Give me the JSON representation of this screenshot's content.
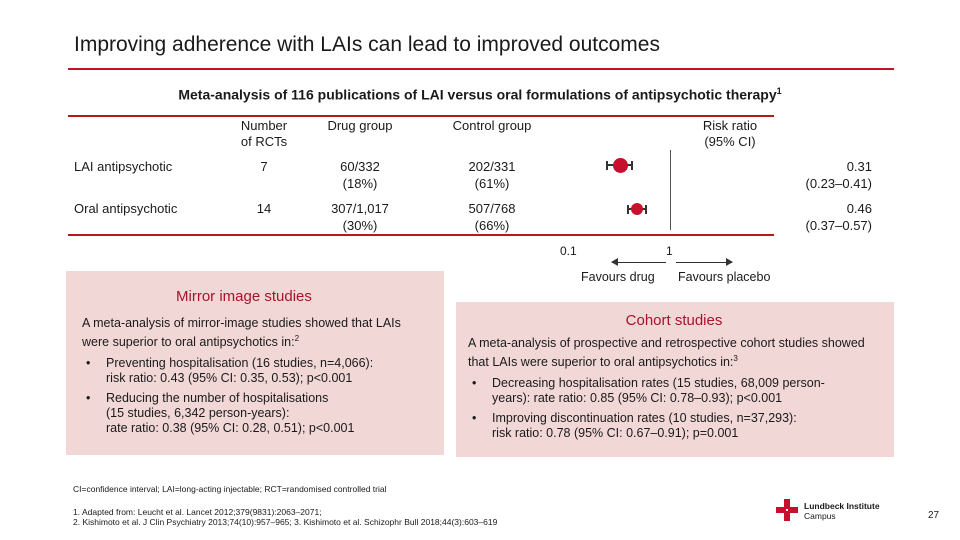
{
  "slide": {
    "title": "Improving adherence with LAIs can lead to improved outcomes",
    "subtitle": "Meta-analysis of 116 publications of LAI versus oral formulations of antipsychotic therapy",
    "subtitle_ref": "1",
    "page_number": "27"
  },
  "table": {
    "headers": {
      "rcts_line1": "Number",
      "rcts_line2": "of RCTs",
      "drug": "Drug group",
      "control": "Control group",
      "rr_line1": "Risk ratio",
      "rr_line2": "(95% CI)"
    },
    "rows": [
      {
        "label": "LAI antipsychotic",
        "rcts": "7",
        "drug_line1": "60/332",
        "drug_line2": "(18%)",
        "control_line1": "202/331",
        "control_line2": "(61%)",
        "rr_line1": "0.31",
        "rr_line2": "(0.23–0.41)",
        "rr": 0.31,
        "ci_low": 0.23,
        "ci_high": 0.41
      },
      {
        "label": "Oral antipsychotic",
        "rcts": "14",
        "drug_line1": "307/1,017",
        "drug_line2": "(30%)",
        "control_line1": "507/768",
        "control_line2": "(66%)",
        "rr_line1": "0.46",
        "rr_line2": "(0.37–0.57)",
        "rr": 0.46,
        "ci_low": 0.37,
        "ci_high": 0.57
      }
    ],
    "axis": {
      "tick_low": "0.1",
      "tick_high": "1",
      "favours_drug": "Favours drug",
      "favours_placebo": "Favours placebo"
    },
    "marker_color": "#c8102e"
  },
  "mirror": {
    "title": "Mirror image studies",
    "intro": "A meta-analysis of mirror-image studies showed that LAIs were superior to oral antipsychotics in:",
    "intro_ref": "2",
    "bullet1_line1": "Preventing hospitalisation (16 studies, n=4,066):",
    "bullet1_line2": "risk ratio: 0.43 (95% CI: 0.35, 0.53); p<0.001",
    "bullet2_line1": "Reducing the number of hospitalisations",
    "bullet2_line2": "(15 studies, 6,342 person-years):",
    "bullet2_line3": "rate ratio: 0.38 (95% CI: 0.28, 0.51); p<0.001"
  },
  "cohort": {
    "title": "Cohort studies",
    "intro": "A meta-analysis of prospective and retrospective cohort studies showed that LAIs were superior to oral antipsychotics in:",
    "intro_ref": "3",
    "bullet1_line1": "Decreasing hospitalisation rates (15 studies, 68,009 person-",
    "bullet1_line2": "years): rate ratio: 0.85 (95% CI: 0.78–0.93); p<0.001",
    "bullet2_line1": "Improving discontinuation rates (10 studies, n=37,293):",
    "bullet2_line2": "risk ratio: 0.78 (95% CI: 0.67–0.91); p=0.001"
  },
  "footnotes": {
    "abbreviations": "CI=confidence interval; LAI=long-acting injectable; RCT=randomised controlled trial",
    "ref_line1": "1. Adapted from: Leucht et al. Lancet 2012;379(9831):2063–2071;",
    "ref_line2": "2. Kishimoto et al. J Clin Psychiatry 2013;74(10):957–965; 3. Kishimoto et al. Schizophr Bull 2018;44(3):603–619"
  },
  "logo": {
    "name": "Lundbeck Institute",
    "sub": "Campus",
    "color": "#c8102e"
  }
}
